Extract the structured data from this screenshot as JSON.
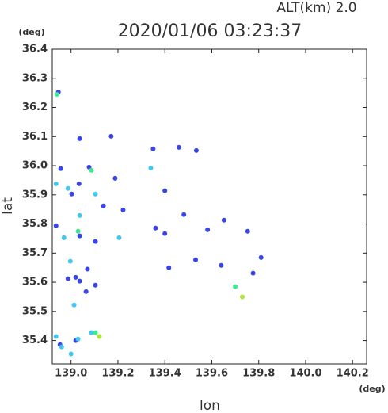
{
  "chart_data": {
    "type": "scatter",
    "title": "2020/01/06 03:23:37",
    "subtitle": "ALT(km)  2.0",
    "x_label": "lon",
    "y_label": "lat",
    "x_unit": "(deg)",
    "y_unit": "(deg)",
    "xlim": [
      138.92,
      140.26
    ],
    "ylim": [
      35.32,
      36.4
    ],
    "xticks": [
      {
        "value": 139.0,
        "label": "139.0"
      },
      139.2,
      139.4,
      139.6,
      139.8,
      {
        "value": 140.0,
        "label": "140.0"
      },
      140.2
    ],
    "yticks": [
      36.4,
      36.3,
      36.2,
      36.1,
      {
        "value": 36.0,
        "label": "36.0"
      },
      35.9,
      35.8,
      35.7,
      35.6,
      35.5,
      35.4
    ],
    "series": [
      {
        "color": "#3a45e8",
        "x": [
          138.946,
          139.037,
          139.171,
          139.35,
          139.46,
          139.534,
          138.956,
          139.077,
          139.188,
          139.4,
          139.034,
          139.003,
          139.138,
          139.222,
          139.481,
          139.582,
          139.652,
          139.753,
          139.36,
          139.4,
          139.81,
          139.531,
          139.64,
          139.417,
          139.104,
          139.02,
          139.07,
          139.037,
          138.987,
          139.104,
          139.064,
          138.953,
          139.02,
          138.936,
          139.037,
          139.776
        ],
        "values": [
          36.253,
          36.093,
          36.101,
          36.058,
          36.063,
          36.052,
          35.99,
          35.995,
          35.957,
          35.914,
          35.938,
          35.903,
          35.862,
          35.848,
          35.832,
          35.78,
          35.813,
          35.775,
          35.786,
          35.767,
          35.685,
          35.677,
          35.658,
          35.65,
          35.74,
          35.617,
          35.645,
          35.604,
          35.612,
          35.59,
          35.568,
          35.386,
          35.4,
          35.794,
          35.759,
          35.631
        ]
      },
      {
        "color": "#40c8f0",
        "x": [
          138.936,
          138.987,
          139.34,
          139.104,
          139.205,
          139.013,
          138.997,
          138.97,
          139.037,
          138.936,
          139.087,
          138.96,
          139.0,
          139.03
        ],
        "values": [
          35.938,
          35.922,
          35.992,
          35.903,
          35.753,
          35.522,
          35.672,
          35.753,
          35.829,
          35.414,
          35.427,
          35.378,
          35.354,
          35.405
        ]
      },
      {
        "color": "#40e890",
        "x": [
          138.94,
          139.087,
          139.03,
          139.104,
          139.7
        ],
        "values": [
          36.245,
          35.984,
          35.775,
          35.427,
          35.585
        ]
      },
      {
        "color": "#a8e830",
        "x": [
          139.73,
          139.121
        ],
        "values": [
          35.55,
          35.414
        ]
      }
    ]
  }
}
